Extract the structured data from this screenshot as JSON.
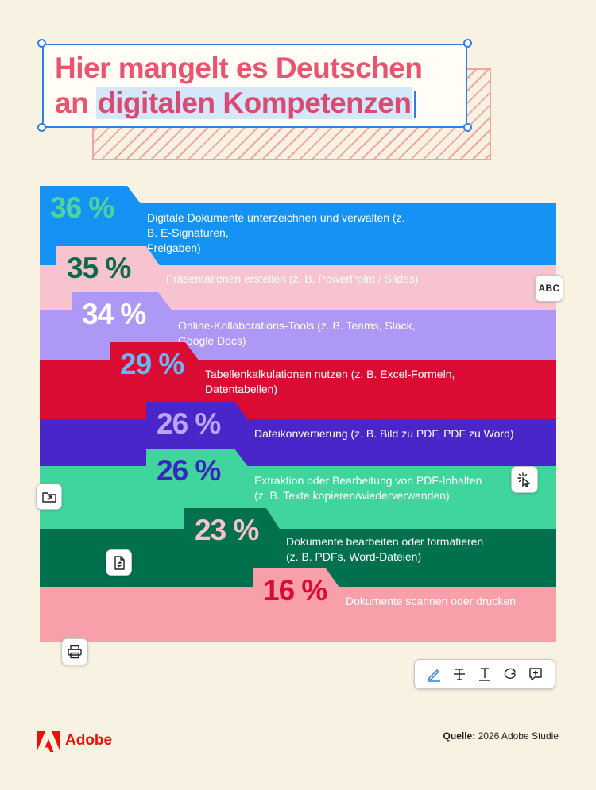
{
  "title": {
    "line1": "Hier mangelt es Deutschen",
    "line2_prefix": "an",
    "line2_highlight": "digitalen Kompetenzen"
  },
  "chart_data": {
    "type": "bar",
    "unit": "%",
    "items": [
      {
        "value": 36,
        "pct_label": "36 %",
        "label_lines": [
          "Digitale Dokumente unterzeichnen und verwalten (z. B. E-Signaturen,",
          "Freigaben)"
        ],
        "band_color": "#1593f5",
        "pct_color": "#4dd39c"
      },
      {
        "value": 35,
        "pct_label": "35 %",
        "label_lines": [
          "Präsentationen erstellen (z. B. PowerPoint / Slides)"
        ],
        "band_color": "#f7c3cf",
        "pct_color": "#0b6a4b"
      },
      {
        "value": 34,
        "pct_label": "34 %",
        "label_lines": [
          "Online-Kollaborations-Tools (z. B. Teams, Slack, Google Docs)"
        ],
        "band_color": "#ad98f6",
        "pct_color": "#ffffff"
      },
      {
        "value": 29,
        "pct_label": "29 %",
        "label_lines": [
          "Tabellenkalkulationen nutzen (z. B. Excel-Formeln,",
          "Datentabellen)"
        ],
        "band_color": "#db0c34",
        "pct_color": "#69b6fb"
      },
      {
        "value": 26,
        "pct_label": "26 %",
        "label_lines": [
          "Dateikonvertierung (z. B. Bild zu PDF, PDF zu Word)"
        ],
        "band_color": "#4a25c9",
        "pct_color": "#b6a7f7"
      },
      {
        "value": 26,
        "pct_label": "26 %",
        "label_lines": [
          "Extraktion oder Bearbeitung von PDF-Inhalten",
          "(z. B. Texte kopieren/wiederverwenden)"
        ],
        "band_color": "#3fd59d",
        "pct_color": "#3925c2"
      },
      {
        "value": 23,
        "pct_label": "23 %",
        "label_lines": [
          "Dokumente bearbeiten oder formatieren",
          "(z. B. PDFs, Word-Dateien)"
        ],
        "band_color": "#00704d",
        "pct_color": "#f7c3cf"
      },
      {
        "value": 16,
        "pct_label": "16 %",
        "label_lines": [
          "Dokumente scannen oder drucken"
        ],
        "band_color": "#f7a0aa",
        "pct_color": "#db0c34"
      }
    ]
  },
  "chips": {
    "abc_label": "ABC"
  },
  "icons": [
    "abc-icon",
    "cursor-sparkle-icon",
    "folder-move-icon",
    "file-convert-icon",
    "printer-icon",
    "pen-icon",
    "strikethrough-icon",
    "text-insert-icon",
    "lasso-icon",
    "comment-add-icon",
    "adobe-logo-icon"
  ],
  "footer": {
    "brand": "Adobe",
    "source_label": "Quelle:",
    "source_text": " 2026 Adobe Studie"
  }
}
